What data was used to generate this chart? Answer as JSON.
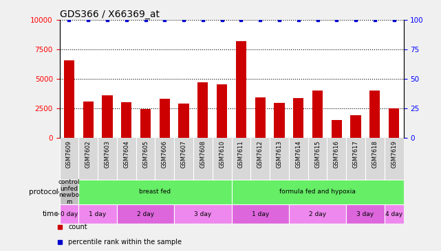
{
  "title": "GDS366 / X66369_at",
  "samples": [
    "GSM7609",
    "GSM7602",
    "GSM7603",
    "GSM7604",
    "GSM7605",
    "GSM7606",
    "GSM7607",
    "GSM7608",
    "GSM7610",
    "GSM7611",
    "GSM7612",
    "GSM7613",
    "GSM7614",
    "GSM7615",
    "GSM7616",
    "GSM7617",
    "GSM7618",
    "GSM7619"
  ],
  "bar_values": [
    6600,
    3100,
    3600,
    3050,
    2450,
    3350,
    2900,
    4700,
    4550,
    8200,
    3450,
    3000,
    3400,
    4000,
    1550,
    1950,
    4050,
    2500
  ],
  "percentile_values": [
    100,
    100,
    100,
    100,
    100,
    100,
    100,
    100,
    100,
    100,
    100,
    100,
    100,
    100,
    100,
    100,
    100,
    100
  ],
  "bar_color": "#cc0000",
  "dot_color": "#0000cc",
  "ylim_left": [
    0,
    10000
  ],
  "ylim_right": [
    0,
    100
  ],
  "yticks_left": [
    0,
    2500,
    5000,
    7500,
    10000
  ],
  "yticks_right": [
    0,
    25,
    50,
    75,
    100
  ],
  "protocol_spans": [
    {
      "label": "control\nunfed\nnewbo\nrn",
      "start": 0,
      "end": 1,
      "color": "#c0c0c0"
    },
    {
      "label": "breast fed",
      "start": 1,
      "end": 9,
      "color": "#66ee66"
    },
    {
      "label": "formula fed and hypoxia",
      "start": 9,
      "end": 18,
      "color": "#66ee66"
    }
  ],
  "time_spans": [
    {
      "label": "0 day",
      "start": 0,
      "end": 1,
      "color": "#ee88ee"
    },
    {
      "label": "1 day",
      "start": 1,
      "end": 3,
      "color": "#ee88ee"
    },
    {
      "label": "2 day",
      "start": 3,
      "end": 6,
      "color": "#dd66dd"
    },
    {
      "label": "3 day",
      "start": 6,
      "end": 9,
      "color": "#ee88ee"
    },
    {
      "label": "1 day",
      "start": 9,
      "end": 12,
      "color": "#dd66dd"
    },
    {
      "label": "2 day",
      "start": 12,
      "end": 15,
      "color": "#ee88ee"
    },
    {
      "label": "3 day",
      "start": 15,
      "end": 17,
      "color": "#dd66dd"
    },
    {
      "label": "4 day",
      "start": 17,
      "end": 18,
      "color": "#ee88ee"
    }
  ],
  "legend_items": [
    {
      "label": "count",
      "color": "#cc0000"
    },
    {
      "label": "percentile rank within the sample",
      "color": "#0000cc"
    }
  ],
  "bg_color": "#f0f0f0",
  "plot_bg": "#ffffff",
  "xticklabel_bg": "#d8d8d8"
}
